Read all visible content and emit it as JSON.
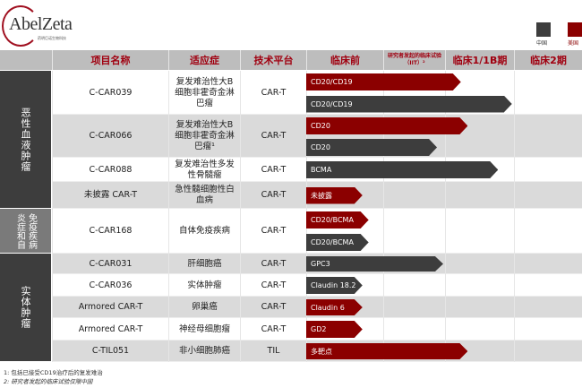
{
  "logo": {
    "text": "AbelZeta",
    "sub": "药明巨诺生物科技"
  },
  "legend": [
    {
      "label": "中国",
      "color": "#3d3d3d"
    },
    {
      "label": "美国",
      "color": "#8b0000"
    }
  ],
  "headers": [
    "项目名称",
    "适应症",
    "技术平台",
    "临床前",
    "研究者发起的临床试验（IIT）²",
    "临床1/1B期",
    "临床2期"
  ],
  "categories": [
    {
      "label": "恶性血液肿瘤",
      "color": "#3d3d3d"
    },
    {
      "label": "免疫炎症和自病疾",
      "cols": [
        "炎症和自",
        "免疫疾病"
      ],
      "color": "#7a7a7a"
    },
    {
      "label": "实体肿瘤",
      "color": "#3d3d3d"
    }
  ],
  "rows": [
    {
      "name": "C-CAR039",
      "indication": "复发难治性大B细胞非霍奇金淋巴瘤",
      "platform": "CAR-T",
      "bars": [
        {
          "label": "CD20/CD19",
          "region": "美国",
          "progress": 2.23
        },
        {
          "label": "CD20/CD19",
          "region": "中国",
          "progress": 2.97
        }
      ]
    },
    {
      "name": "C-CAR066",
      "indication": "复发难治性大B细胞非霍奇金淋巴瘤¹",
      "platform": "CAR-T",
      "bars": [
        {
          "label": "CD20",
          "region": "美国",
          "progress": 2.33
        },
        {
          "label": "CD20",
          "region": "中国",
          "progress": 1.87
        }
      ]
    },
    {
      "name": "C-CAR088",
      "indication": "复发难治性多发性骨髓瘤",
      "platform": "CAR-T",
      "bars": [
        {
          "label": "BCMA",
          "region": "中国",
          "progress": 2.77
        }
      ]
    },
    {
      "name": "未披露 CAR-T",
      "indication": "急性髓细胞性白血病",
      "platform": "CAR-T",
      "bars": [
        {
          "label": "未披露",
          "region": "美国",
          "progress": 0.73
        }
      ]
    },
    {
      "name": "C-CAR168",
      "indication": "自体免疫疾病",
      "platform": "CAR-T",
      "bars": [
        {
          "label": "CD20/BCMA",
          "region": "美国",
          "progress": 0.81
        },
        {
          "label": "CD20/BCMA",
          "region": "中国",
          "progress": 0.81
        }
      ]
    },
    {
      "name": "C-CAR031",
      "indication": "肝细胞癌",
      "platform": "CAR-T",
      "bars": [
        {
          "label": "GPC3",
          "region": "中国",
          "progress": 1.97
        }
      ]
    },
    {
      "name": "C-CAR036",
      "indication": "实体肿瘤",
      "platform": "CAR-T",
      "bars": [
        {
          "label": "Claudin 18.2",
          "region": "中国",
          "progress": 0.73
        }
      ]
    },
    {
      "name": "Armored CAR-T",
      "indication": "卵巢癌",
      "platform": "CAR-T",
      "bars": [
        {
          "label": "Claudin 6",
          "region": "美国",
          "progress": 0.73
        }
      ]
    },
    {
      "name": "Armored CAR-T",
      "indication": "神经母细胞瘤",
      "platform": "CAR-T",
      "bars": [
        {
          "label": "GD2",
          "region": "美国",
          "progress": 0.73
        }
      ]
    },
    {
      "name": "C-TIL051",
      "indication": "非小细胞肺癌",
      "platform": "TIL",
      "bars": [
        {
          "label": "多靶点",
          "region": "美国",
          "progress": 2.33
        }
      ]
    }
  ],
  "footnotes": [
    "1: 包括已接受CD19治疗后的复发难治",
    "2: 研究者发起的临床试验仅限中国"
  ]
}
